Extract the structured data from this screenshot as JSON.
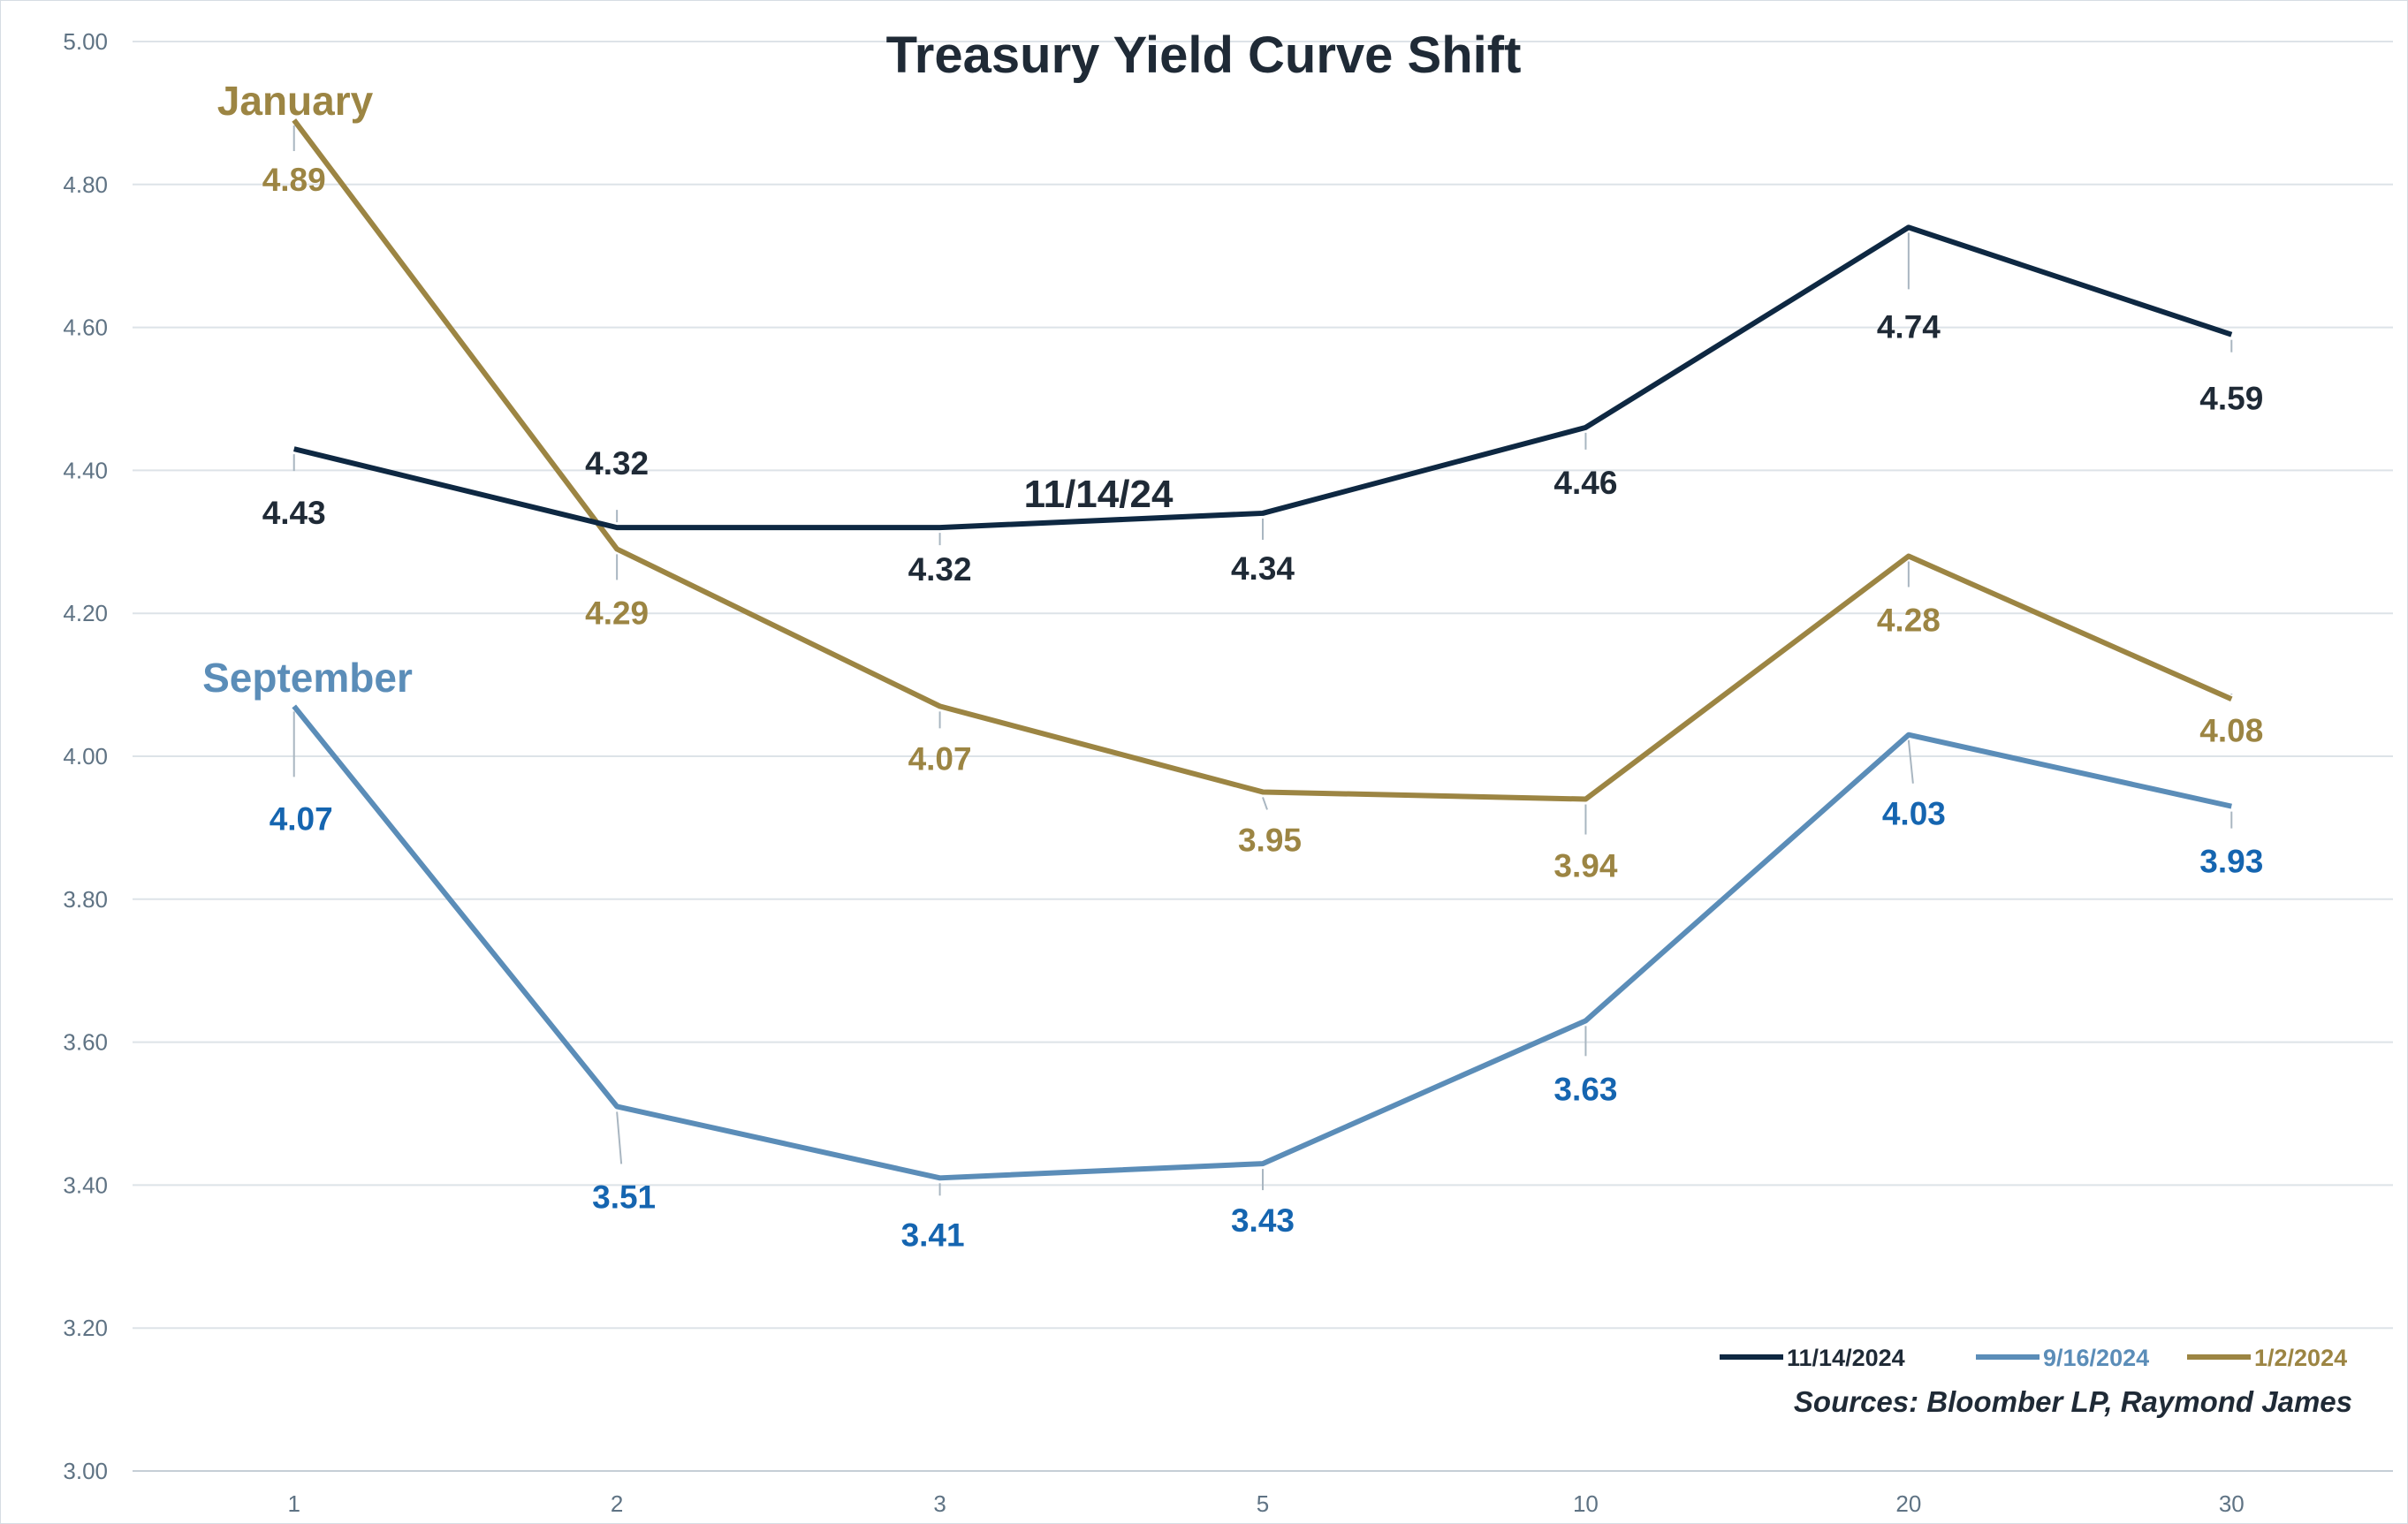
{
  "chart_data": {
    "type": "line",
    "title": "Treasury Yield Curve Shift",
    "categories": [
      "1",
      "2",
      "3",
      "5",
      "10",
      "20",
      "30"
    ],
    "ylim": [
      3.0,
      5.0
    ],
    "yticks": [
      "3.00",
      "3.20",
      "3.40",
      "3.60",
      "3.80",
      "4.00",
      "4.20",
      "4.40",
      "4.60",
      "4.80",
      "5.00"
    ],
    "grid": true,
    "legend_position": "bottom-right",
    "series": [
      {
        "name": "11/14/2024",
        "color": "#0e2842",
        "label_color": "#1f2a36",
        "values": [
          4.43,
          4.32,
          4.32,
          4.34,
          4.46,
          4.74,
          4.59
        ],
        "labels": [
          "4.43",
          "4.32",
          "4.32",
          "4.34",
          "4.46",
          "4.74",
          "4.59"
        ]
      },
      {
        "name": "9/16/2024",
        "color": "#5b8db8",
        "label_color": "#1565b0",
        "values": [
          4.07,
          3.51,
          3.41,
          3.43,
          3.63,
          4.03,
          3.93
        ],
        "labels": [
          "4.07",
          "3.51",
          "3.41",
          "3.43",
          "3.63",
          "4.03",
          "3.93"
        ]
      },
      {
        "name": "1/2/2024",
        "color": "#9c8543",
        "label_color": "#9c8543",
        "values": [
          4.89,
          4.29,
          4.07,
          3.95,
          3.94,
          4.28,
          4.08
        ],
        "labels": [
          "4.89",
          "4.29",
          "4.07",
          "3.95",
          "3.94",
          "4.28",
          "4.08"
        ]
      }
    ],
    "annotations": [
      {
        "text": "January",
        "color": "#9c8543"
      },
      {
        "text": "September",
        "color": "#5b8db8"
      },
      {
        "text": "11/14/24",
        "color": "#1f2a36"
      }
    ],
    "source": "Sources: Bloomber LP, Raymond James"
  }
}
